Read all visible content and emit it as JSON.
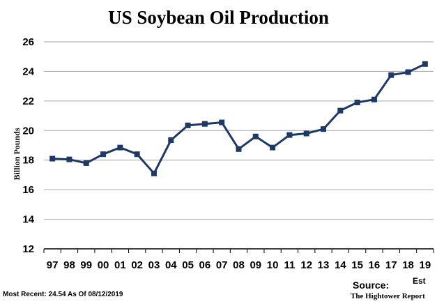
{
  "chart_data": {
    "type": "line",
    "title": "US Soybean Oil Production",
    "xlabel": "",
    "ylabel": "Billion Pounds",
    "categories": [
      "97",
      "98",
      "99",
      "00",
      "01",
      "02",
      "03",
      "04",
      "05",
      "06",
      "07",
      "08",
      "09",
      "10",
      "11",
      "12",
      "13",
      "14",
      "15",
      "16",
      "17",
      "18",
      "19"
    ],
    "series": [
      {
        "values": [
          18.1,
          18.05,
          17.8,
          18.4,
          18.85,
          18.4,
          17.1,
          19.35,
          20.35,
          20.45,
          20.55,
          18.75,
          19.6,
          18.85,
          19.7,
          19.8,
          20.1,
          21.35,
          21.9,
          22.1,
          23.75,
          23.95,
          24.5
        ],
        "color": "#1f3864"
      }
    ],
    "ylim": [
      12,
      26
    ],
    "yticks": [
      12,
      14,
      16,
      18,
      20,
      22,
      24,
      26
    ],
    "grid": true,
    "x_note": "Est"
  },
  "source": {
    "label": "Source:",
    "name": "The Hightower Report"
  },
  "footnote": "Most Recent: 24.54 As Of 08/12/2019"
}
